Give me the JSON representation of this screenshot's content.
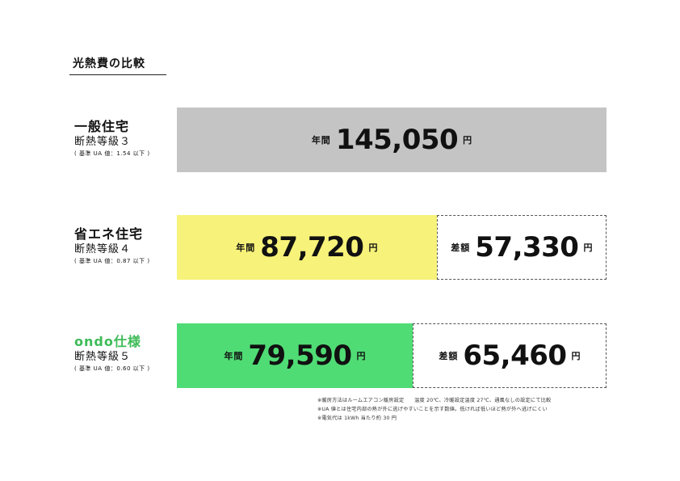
{
  "title": "光熱費の比較",
  "colors": {
    "general": "#c4c4c4",
    "eco": "#f7f279",
    "ondo": "#50dc75",
    "ondo_label": "#3dbb57"
  },
  "chart_data": {
    "type": "bar",
    "orientation": "horizontal",
    "stacked": true,
    "unit": "円",
    "max": 145050,
    "rows": [
      {
        "name": "一般住宅",
        "grade": "断熱等級３",
        "ua": "( 基準 UA 値：1.54 以下 )",
        "annual_prefix": "年間",
        "annual": 145050,
        "annual_label": "145,050",
        "diff_prefix": "",
        "diff": 0,
        "diff_label": ""
      },
      {
        "name": "省エネ住宅",
        "grade": "断熱等級４",
        "ua": "( 基準 UA 値：0.87 以下 )",
        "annual_prefix": "年間",
        "annual": 87720,
        "annual_label": "87,720",
        "diff_prefix": "差額",
        "diff": 57330,
        "diff_label": "57,330"
      },
      {
        "name": "ondo仕様",
        "grade": "断熱等級５",
        "ua": "( 基準 UA 値：0.60 以下 )",
        "annual_prefix": "年間",
        "annual": 79590,
        "annual_label": "79,590",
        "diff_prefix": "差額",
        "diff": 65460,
        "diff_label": "65,460"
      }
    ]
  },
  "notes": [
    "※暖房方法はルームエアコン暖房設定　　温度 20℃、冷暖設定温度 27℃、通風なしの設定にて比較",
    "※UA 値とは住宅内部の熱が外に逃げやすいことを示す数値。低ければ低いほど熱が外へ逃げにくい",
    "※電気代は 1kWh 当たり約 30 円"
  ]
}
